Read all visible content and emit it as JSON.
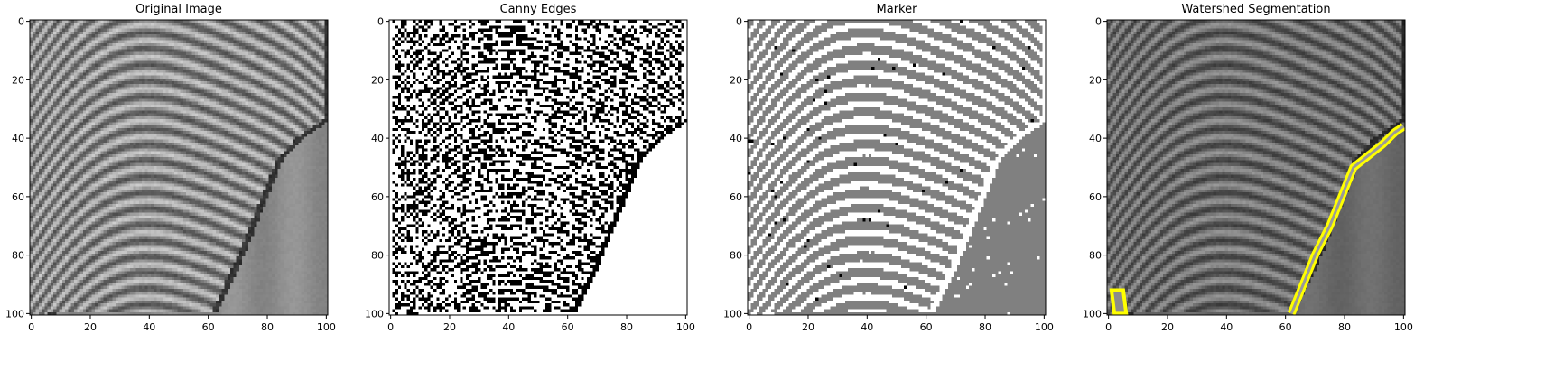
{
  "chart_data": [
    {
      "type": "heatmap",
      "title": "Original Image",
      "xlabel": "",
      "ylabel": "",
      "xlim": [
        0,
        100
      ],
      "ylim": [
        100,
        0
      ],
      "xticks": [
        "0",
        "20",
        "40",
        "60",
        "80",
        "100"
      ],
      "yticks": [
        "0",
        "20",
        "40",
        "60",
        "80",
        "100"
      ],
      "image_size": [
        101,
        101
      ],
      "colormap": "grayscale",
      "boundary": [
        [
          7,
          100
        ],
        [
          62,
          100
        ],
        [
          70,
          83
        ],
        [
          78,
          63
        ],
        [
          84,
          48
        ],
        [
          91,
          40
        ],
        [
          100,
          34
        ]
      ]
    },
    {
      "type": "heatmap",
      "title": "Canny Edges",
      "xlabel": "",
      "ylabel": "",
      "xlim": [
        0,
        100
      ],
      "ylim": [
        100,
        0
      ],
      "xticks": [
        "0",
        "20",
        "40",
        "60",
        "80",
        "100"
      ],
      "yticks": [
        "0",
        "20",
        "40",
        "60",
        "80",
        "100"
      ],
      "image_size": [
        101,
        101
      ],
      "colormap": "binary edges (black on white)"
    },
    {
      "type": "heatmap",
      "title": "Marker",
      "xlabel": "",
      "ylabel": "",
      "xlim": [
        0,
        100
      ],
      "ylim": [
        100,
        0
      ],
      "xticks": [
        "0",
        "20",
        "40",
        "60",
        "80",
        "100"
      ],
      "yticks": [
        "0",
        "20",
        "40",
        "60",
        "80",
        "100"
      ],
      "image_size": [
        101,
        101
      ],
      "colormap": "three-level (white / gray / black)"
    },
    {
      "type": "heatmap",
      "title": "Watershed Segmentation",
      "xlabel": "",
      "ylabel": "",
      "xlim": [
        0,
        100
      ],
      "ylim": [
        100,
        0
      ],
      "xticks": [
        "0",
        "20",
        "40",
        "60",
        "80",
        "100"
      ],
      "yticks": [
        "0",
        "20",
        "40",
        "60",
        "80",
        "100"
      ],
      "image_size": [
        101,
        101
      ],
      "colormap": "grayscale with yellow boundary overlay",
      "boundary_color": "#ffff00",
      "boundary": [
        [
          62,
          100
        ],
        [
          66,
          90
        ],
        [
          70,
          80
        ],
        [
          75,
          70
        ],
        [
          79,
          60
        ],
        [
          83,
          50
        ],
        [
          88,
          46
        ],
        [
          93,
          42
        ],
        [
          97,
          38
        ],
        [
          100,
          36
        ]
      ],
      "small_region": [
        [
          1,
          92
        ],
        [
          5,
          92
        ],
        [
          6,
          100
        ],
        [
          2,
          100
        ]
      ]
    }
  ]
}
